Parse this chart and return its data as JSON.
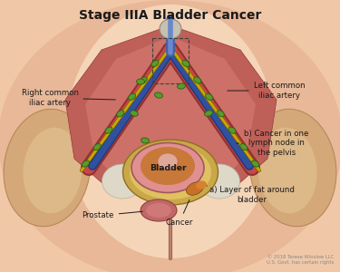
{
  "title": "Stage IIIA Bladder Cancer",
  "title_fontsize": 10,
  "title_fontweight": "bold",
  "bg_color": "#f0c8a8",
  "copyright": "© 2018 Terese Winslow LLC\nU.S. Govt. has certain rights",
  "labels": {
    "right_iliac": "Right common\niliac artery",
    "left_iliac": "Left common\niliac artery",
    "cancer_lymph": "b) Cancer in one\nlymph node in\nthe pelvis",
    "bladder": "Bladder",
    "fat_layer": "a) Layer of fat around\nbladder",
    "cancer": "Cancer",
    "prostate": "Prostate"
  },
  "skin_color": "#e8b898",
  "skin_light": "#f5d5b8",
  "hip_color": "#d4a070",
  "pelvis_color": "#c06858",
  "pelvis_inner": "#cc7870",
  "artery_color": "#c84848",
  "artery_dark": "#903030",
  "vein_color": "#3050a0",
  "nerve_color": "#c8a800",
  "lymph_color": "#5a9a2a",
  "lymph_dark": "#2a6010",
  "bladder_ring_color": "#e09090",
  "bladder_fill": "#c87838",
  "fat_color": "#c8a848",
  "fat_light": "#e0c060",
  "cancer_color": "#c87028",
  "prostate_color": "#c06868",
  "white_area": "#e8e0d8",
  "annotation_color": "#1a1a1a",
  "pelvic_bone_color": "#d8c090"
}
